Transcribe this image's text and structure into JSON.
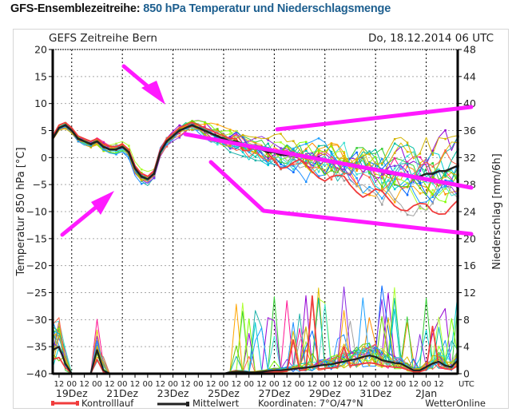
{
  "page": {
    "title_prefix": "GFS-Ensemblezeitreihe:",
    "title_main": "850 hPa Temperatur und Niederschlagsmenge"
  },
  "chart_data": {
    "type": "line",
    "title": "GEFS Zeitreihe Bern",
    "run_time": "Do, 18.12.2014 06 UTC",
    "ylabel_left": "Temperatur 850 hPa [°C]",
    "ylabel_right": "Niederschlag [mm/6h]",
    "ylim_left": [
      -40,
      20
    ],
    "ylim_right": [
      0,
      48
    ],
    "yticks_left": [
      "20",
      "15",
      "10",
      "5",
      "0",
      "−5",
      "−10",
      "−15",
      "−20",
      "−25",
      "−30",
      "−35",
      "−40"
    ],
    "yticks_right": [
      "48",
      "44",
      "40",
      "36",
      "32",
      "28",
      "24",
      "20",
      "16",
      "12",
      "8",
      "4",
      "0"
    ],
    "xtick_hours": [
      "12",
      "00",
      "12",
      "00",
      "12",
      "00",
      "12",
      "00",
      "12",
      "00",
      "12",
      "00",
      "12",
      "00",
      "12",
      "00",
      "12",
      "00",
      "12",
      "00",
      "12",
      "00",
      "12",
      "00",
      "12",
      "00",
      "12",
      "00",
      "12",
      "00",
      "12"
    ],
    "xtick_unit": "UTC",
    "xday_labels": [
      "19Dez",
      "21Dez",
      "23Dez",
      "25Dez",
      "27Dez",
      "29Dez",
      "31Dez",
      "2Jan"
    ],
    "grid": true,
    "legend": {
      "control_label": "Kontrolllauf",
      "mean_label": "Mittelwert",
      "coordinates": "Koordinaten: 7°O/47°N",
      "credit": "WetterOnline",
      "placement": "bottom"
    },
    "colors": {
      "control": "#f03c3c",
      "mean": "#222222",
      "annotation": "#ff1aff",
      "members": [
        "#ff8c00",
        "#32cd32",
        "#1e90ff",
        "#9400d3",
        "#00ced1",
        "#adff2f",
        "#ff1493",
        "#20b2aa",
        "#ffa500",
        "#0066ff",
        "#7fff00",
        "#a0a0a0",
        "#e0c000",
        "#00bfa0",
        "#8a2be2",
        "#40e0d0",
        "#ff6347",
        "#66cc00",
        "#1ca0ff",
        "#d2b400"
      ]
    },
    "time_step_hours": 6,
    "time_start": "18.12.2014 06 UTC",
    "temperature_mean": [
      3.5,
      5.5,
      6,
      5,
      3.5,
      3,
      2.5,
      3,
      2,
      1.5,
      1.5,
      2,
      1,
      -2,
      -3.5,
      -4,
      -3,
      1,
      3,
      4,
      5,
      5.5,
      6,
      5.5,
      5,
      4.5,
      4,
      3.5,
      3,
      3,
      2.5,
      2,
      2,
      1.5,
      1,
      1,
      0.5,
      0.5,
      0.5,
      0.5,
      0,
      0,
      0,
      -0.5,
      -0.5,
      -1,
      -1,
      -1.5,
      -1.5,
      -2,
      -2,
      -2,
      -2.5,
      -3,
      -3,
      -3,
      -3.5,
      -3.5,
      -3.5,
      -3,
      -3,
      -2.5,
      -2.5,
      -2,
      -1.5
    ],
    "precip_mean": [
      3.5,
      4,
      1.5,
      0,
      0,
      0,
      0,
      3.5,
      0.5,
      0,
      0,
      0,
      0,
      0,
      0,
      0,
      0,
      0,
      0,
      0,
      0,
      0,
      0,
      0,
      0,
      0,
      0,
      0,
      0.2,
      0.3,
      0.3,
      0.2,
      0.2,
      0.3,
      0.4,
      0.5,
      0.5,
      0.6,
      0.7,
      0.8,
      0.9,
      1.0,
      1.2,
      1.3,
      1.4,
      1.6,
      1.8,
      2.0,
      2.2,
      2.5,
      2.7,
      2.5,
      2.0,
      1.8,
      1.6,
      1.5,
      1.0,
      0.5,
      0.5,
      1.0,
      1.5,
      1.8,
      1.2,
      1.0,
      2.0
    ],
    "annotations": [
      {
        "type": "arrow",
        "label": "arrow pointing to warm peak"
      },
      {
        "type": "arrow",
        "label": "arrow pointing to cold trough"
      },
      {
        "type": "trend-line",
        "label": "upper envelope"
      },
      {
        "type": "trend-line",
        "label": "mean trend"
      },
      {
        "type": "trend-line",
        "label": "lower envelope"
      }
    ]
  }
}
